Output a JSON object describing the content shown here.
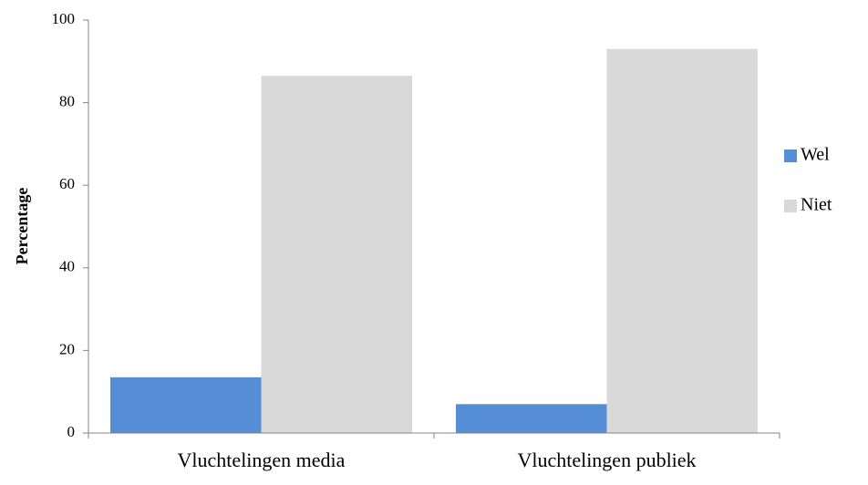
{
  "chart_data": {
    "type": "bar",
    "y_label": "Percentage",
    "categories": [
      "Vluchtelingen media",
      "Vluchtelingen publiek"
    ],
    "series": [
      {
        "name": "Wel",
        "color": "#558ed5",
        "values": [
          13.5,
          7
        ]
      },
      {
        "name": "Niet",
        "color": "#d9d9d9",
        "values": [
          86.5,
          93
        ]
      }
    ],
    "ylim": [
      0,
      100
    ],
    "yticks": [
      0,
      20,
      40,
      60,
      80,
      100
    ],
    "grid": false,
    "legend": "right"
  }
}
